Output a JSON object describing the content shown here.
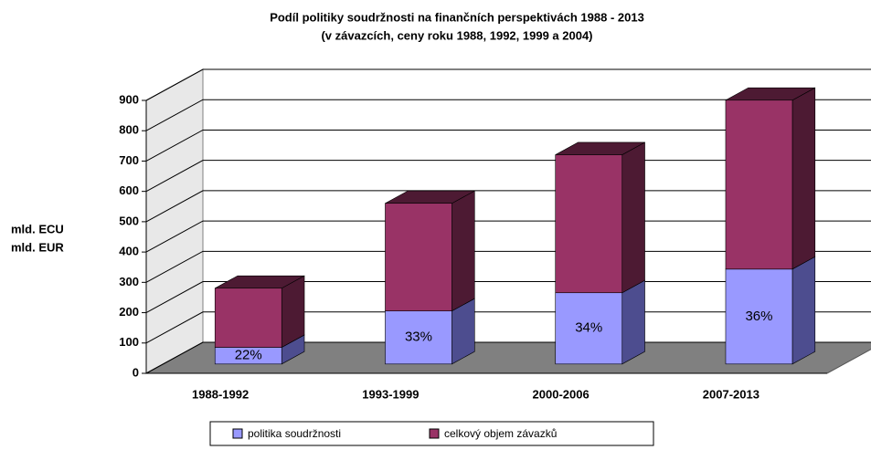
{
  "chart_data": {
    "type": "bar3d_stacked",
    "title": "Podíl politiky soudržnosti na finančních perspektivách 1988 - 2013",
    "subtitle": "(v závazcích, ceny roku 1988, 1992, 1999 a 2004)",
    "y_label": [
      "mld. ECU",
      "mld. EUR"
    ],
    "categories": [
      "1988-1992",
      "1993-1999",
      "2000-2006",
      "2007-2013"
    ],
    "series": [
      {
        "name": "politika soudržnosti",
        "color": "#9999ff",
        "side_color": "#4d4d8f",
        "values": [
          55,
          175,
          235,
          313
        ]
      },
      {
        "name": "celkový objem závazků",
        "color": "#993366",
        "side_color": "#4d1a33",
        "values": [
          195,
          355,
          455,
          557
        ]
      }
    ],
    "annotations": [
      "22%",
      "33%",
      "34%",
      "36%"
    ],
    "ylim": [
      0,
      900
    ],
    "yticks": [
      0,
      100,
      200,
      300,
      400,
      500,
      600,
      700,
      800,
      900
    ],
    "grid": true,
    "legend": "bottom"
  }
}
